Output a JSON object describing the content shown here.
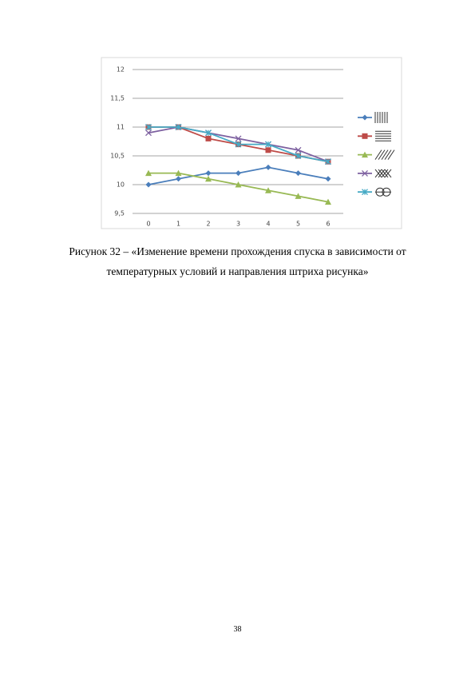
{
  "chart_data": {
    "type": "line",
    "categories": [
      "0",
      "1",
      "2",
      "3",
      "4",
      "5",
      "6"
    ],
    "series": [
      {
        "color": "#4a7ebb",
        "marker": "diamond",
        "values": [
          10,
          10.1,
          10.2,
          10.2,
          10.3,
          10.2,
          10.1
        ]
      },
      {
        "color": "#be4b48",
        "marker": "square",
        "values": [
          11,
          11,
          10.8,
          10.7,
          10.6,
          10.5,
          10.4
        ]
      },
      {
        "color": "#98b954",
        "marker": "triangle",
        "values": [
          10.2,
          10.2,
          10.1,
          10,
          9.9,
          9.8,
          9.7
        ]
      },
      {
        "color": "#7d60a0",
        "marker": "x",
        "values": [
          10.9,
          11,
          10.9,
          10.8,
          10.7,
          10.6,
          10.4
        ]
      },
      {
        "color": "#46aac5",
        "marker": "star",
        "values": [
          11,
          11,
          10.9,
          10.7,
          10.7,
          10.5,
          10.4
        ]
      }
    ],
    "ylim": [
      9.5,
      12
    ],
    "yticks": [
      {
        "value": 9.5,
        "label": "9,5"
      },
      10,
      {
        "value": 10.5,
        "label": "10,5"
      },
      11,
      {
        "value": 11.5,
        "label": "11,5"
      },
      12
    ],
    "grid": true
  },
  "caption": [
    "Рисунок 32 – «Изменение времени прохождения спуска в зависимости от",
    "температурных условий и направления штриха рисунка»"
  ],
  "page_number": "38"
}
